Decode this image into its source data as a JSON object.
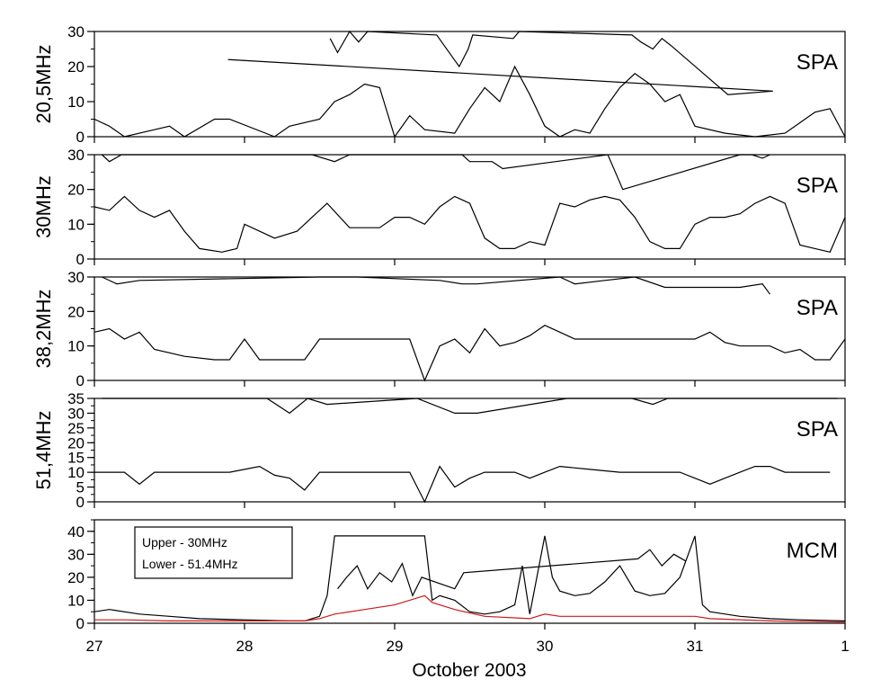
{
  "chart_data": {
    "type": "line",
    "title": "",
    "xlabel": "October 2003",
    "x_ticks": [
      "27",
      "28",
      "29",
      "30",
      "31",
      "1"
    ],
    "xlim": [
      27,
      32
    ],
    "panels": [
      {
        "ylabel": "20,5MHz",
        "label": "SPA",
        "ylim": [
          0,
          30
        ],
        "y_ticks": [
          0,
          10,
          20,
          30
        ],
        "series": [
          {
            "color": "#000000",
            "x": [
              27.0,
              27.1,
              27.2,
              27.4,
              27.5,
              27.6,
              27.8,
              27.9,
              28.2,
              28.3,
              28.5,
              28.6,
              28.7,
              28.8,
              28.9,
              29.0,
              29.1,
              29.2,
              29.4,
              29.5,
              29.6,
              29.7,
              29.8,
              29.9,
              30.0,
              30.1,
              30.2,
              30.3,
              30.4,
              30.5,
              30.6,
              30.7,
              30.8,
              30.9,
              31.0,
              31.2,
              31.4,
              31.6,
              31.8,
              31.9,
              32.0
            ],
            "y": [
              5,
              3,
              0,
              2,
              3,
              0,
              5,
              5,
              0,
              3,
              5,
              10,
              12,
              15,
              14,
              0,
              6,
              2,
              1,
              8,
              14,
              10,
              20,
              12,
              3,
              0,
              2,
              1,
              8,
              14,
              18,
              15,
              10,
              12,
              3,
              1,
              0,
              1,
              7,
              8,
              0
            ]
          },
          {
            "color": "#000000",
            "x": [
              28.57,
              28.62,
              28.7,
              28.76,
              28.82,
              29.28,
              29.43,
              29.49,
              29.52,
              29.79,
              29.83,
              30.58,
              30.64,
              30.72,
              30.78,
              30.84,
              31.22,
              31.52,
              27.89
            ],
            "y": [
              28,
              24,
              30,
              27,
              30,
              29,
              20,
              25,
              29,
              28,
              30,
              29,
              27,
              25,
              28,
              26,
              12,
              13,
              22
            ]
          }
        ]
      },
      {
        "ylabel": "30MHz",
        "label": "SPA",
        "ylim": [
          0,
          30
        ],
        "y_ticks": [
          0,
          10,
          20,
          30
        ],
        "series": [
          {
            "color": "#000000",
            "x": [
              27.0,
              27.1,
              27.2,
              27.3,
              27.4,
              27.5,
              27.6,
              27.7,
              27.85,
              27.95,
              28.0,
              28.2,
              28.35,
              28.45,
              28.55,
              28.7,
              28.8,
              28.9,
              29.0,
              29.1,
              29.2,
              29.3,
              29.4,
              29.5,
              29.6,
              29.7,
              29.8,
              29.9,
              30.0,
              30.1,
              30.2,
              30.3,
              30.4,
              30.5,
              30.6,
              30.7,
              30.8,
              30.9,
              31.0,
              31.1,
              31.2,
              31.3,
              31.4,
              31.5,
              31.6,
              31.7,
              31.8,
              31.9,
              32.0
            ],
            "y": [
              15,
              14,
              18,
              14,
              12,
              14,
              8,
              3,
              2,
              3,
              10,
              6,
              8,
              12,
              16,
              9,
              9,
              9,
              12,
              12,
              10,
              15,
              18,
              16,
              6,
              3,
              3,
              5,
              4,
              16,
              15,
              17,
              18,
              17,
              12,
              5,
              3,
              3,
              10,
              12,
              12,
              13,
              16,
              18,
              16,
              4,
              3,
              2,
              12
            ]
          },
          {
            "color": "#000000",
            "x": [
              27.05,
              27.1,
              27.18,
              27.24,
              27.32,
              28.45,
              28.6,
              28.7,
              28.75,
              29.45,
              29.5,
              29.65,
              29.72,
              30.42,
              30.52,
              31.3,
              31.38,
              31.45,
              31.5
            ],
            "y": [
              30,
              28,
              30,
              30,
              30,
              30,
              28,
              30,
              30,
              30,
              28,
              28,
              26,
              30,
              20,
              30,
              30,
              29,
              30
            ]
          }
        ]
      },
      {
        "ylabel": "38,2MHz",
        "label": "SPA",
        "ylim": [
          0,
          30
        ],
        "y_ticks": [
          0,
          10,
          20,
          30
        ],
        "series": [
          {
            "color": "#000000",
            "x": [
              27.0,
              27.1,
              27.2,
              27.3,
              27.4,
              27.6,
              27.8,
              27.9,
              28.0,
              28.1,
              28.3,
              28.4,
              28.5,
              28.6,
              28.8,
              29.0,
              29.1,
              29.2,
              29.3,
              29.4,
              29.5,
              29.6,
              29.7,
              29.8,
              29.9,
              30.0,
              30.1,
              30.2,
              30.3,
              30.5,
              30.7,
              30.9,
              31.0,
              31.1,
              31.2,
              31.3,
              31.5,
              31.6,
              31.7,
              31.8,
              31.9,
              32.0
            ],
            "y": [
              14,
              15,
              12,
              14,
              9,
              7,
              6,
              6,
              12,
              6,
              6,
              6,
              12,
              12,
              12,
              12,
              12,
              0,
              10,
              12,
              8,
              15,
              10,
              11,
              13,
              16,
              14,
              12,
              12,
              12,
              12,
              12,
              12,
              14,
              11,
              10,
              10,
              8,
              9,
              6,
              6,
              12
            ]
          },
          {
            "color": "#000000",
            "x": [
              27.05,
              27.15,
              27.3,
              28.5,
              28.6,
              28.75,
              29.3,
              29.45,
              29.55,
              30.1,
              30.2,
              30.4,
              30.6,
              30.8,
              31.3,
              31.45,
              31.5
            ],
            "y": [
              30,
              28,
              29,
              30,
              30,
              30,
              29,
              28,
              28,
              30,
              28,
              29,
              30,
              27,
              27,
              28,
              25
            ]
          }
        ]
      },
      {
        "ylabel": "51,4MHz",
        "label": "SPA",
        "ylim": [
          0,
          35
        ],
        "y_ticks": [
          0,
          5,
          10,
          15,
          20,
          25,
          30,
          35
        ],
        "series": [
          {
            "color": "#000000",
            "x": [
              27.0,
              27.1,
              27.2,
              27.3,
              27.4,
              27.5,
              27.7,
              27.9,
              28.1,
              28.2,
              28.3,
              28.4,
              28.5,
              28.6,
              29.1,
              29.2,
              29.3,
              29.4,
              29.5,
              29.6,
              29.8,
              29.9,
              30.0,
              30.1,
              30.3,
              30.5,
              30.7,
              30.8,
              30.9,
              31.0,
              31.1,
              31.2,
              31.3,
              31.4,
              31.5,
              31.6,
              31.8,
              31.9
            ],
            "y": [
              10,
              10,
              10,
              6,
              10,
              10,
              10,
              10,
              12,
              9,
              8,
              4,
              10,
              10,
              10,
              0,
              12,
              5,
              8,
              10,
              10,
              8,
              10,
              12,
              11,
              10,
              10,
              10,
              10,
              8,
              6,
              8,
              10,
              12,
              12,
              10,
              10,
              10
            ]
          },
          {
            "color": "#000000",
            "x": [
              27.05,
              27.2,
              27.28,
              27.4,
              27.52,
              27.6,
              27.72,
              28.15,
              28.3,
              28.42,
              28.55,
              29.15,
              29.4,
              29.55,
              30.15,
              30.22,
              30.35,
              30.45,
              30.58,
              30.72,
              30.82,
              31.35,
              31.5,
              31.62,
              31.95
            ],
            "y": [
              35,
              35,
              35,
              35,
              35,
              35,
              35,
              35,
              30,
              35,
              33,
              35,
              30,
              30,
              35,
              35,
              35,
              35,
              35,
              33,
              35,
              35,
              35,
              35,
              35
            ]
          }
        ]
      },
      {
        "ylabel": "",
        "label": "MCM",
        "ylim": [
          0,
          45
        ],
        "y_ticks": [
          0,
          10,
          20,
          30,
          40
        ],
        "legend": [
          "Upper - 30MHz",
          "Lower - 51.4MHz"
        ],
        "series": [
          {
            "color": "#000000",
            "x": [
              27.0,
              27.1,
              27.3,
              27.5,
              27.7,
              28.0,
              28.3,
              28.4,
              28.5,
              28.55,
              28.6,
              28.8,
              29.0,
              29.2,
              29.25,
              29.3,
              29.4,
              29.5,
              29.6,
              29.7,
              29.8,
              29.85,
              29.9,
              30.0,
              30.05,
              30.1,
              30.2,
              30.3,
              30.4,
              30.5,
              30.6,
              30.7,
              30.8,
              30.9,
              31.0,
              31.05,
              31.1,
              31.3,
              31.5,
              31.7,
              32.0
            ],
            "y": [
              5,
              6,
              4,
              3,
              2,
              1.5,
              1,
              1,
              3,
              12,
              38,
              38,
              38,
              38,
              10,
              12,
              10,
              5,
              4,
              5,
              8,
              25,
              4,
              38,
              20,
              14,
              12,
              13,
              18,
              25,
              14,
              12,
              13,
              20,
              38,
              8,
              5,
              3,
              2,
              1.5,
              1
            ]
          },
          {
            "color": "#000000",
            "x": [
              28.62,
              28.68,
              28.75,
              28.82,
              28.9,
              28.98,
              29.05,
              29.12,
              29.18,
              29.4,
              29.46,
              30.62,
              30.7,
              30.78,
              30.86,
              30.94
            ],
            "y": [
              15,
              20,
              25,
              15,
              22,
              18,
              26,
              12,
              20,
              15,
              22,
              28,
              32,
              25,
              30,
              27
            ]
          },
          {
            "color": "#cc1a1a",
            "x": [
              27.0,
              27.2,
              27.5,
              28.0,
              28.4,
              28.5,
              28.6,
              28.8,
              29.0,
              29.1,
              29.2,
              29.25,
              29.4,
              29.6,
              29.9,
              30.0,
              30.1,
              30.3,
              30.5,
              30.7,
              30.9,
              31.0,
              31.1,
              31.5,
              32.0
            ],
            "y": [
              1.5,
              1.5,
              1,
              1,
              1,
              2,
              4,
              6,
              8,
              10,
              12,
              9,
              6,
              3,
              2,
              4,
              3,
              3,
              3,
              3,
              3,
              3,
              2,
              1,
              0.5
            ]
          }
        ]
      }
    ]
  }
}
